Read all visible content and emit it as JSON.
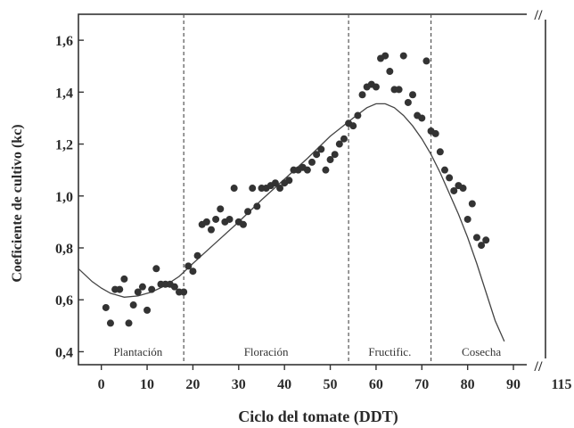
{
  "chart_data": {
    "type": "scatter",
    "title": "",
    "xlabel": "Ciclo del tomate (DDT)",
    "ylabel": "Coeficiente de cultivo (kc)",
    "xlim": [
      -5,
      97
    ],
    "ylim": [
      0.35,
      1.7
    ],
    "x_ticks": [
      "0",
      "10",
      "20",
      "30",
      "40",
      "50",
      "60",
      "70",
      "80",
      "90",
      "115"
    ],
    "y_ticks": [
      "0,4",
      "0,6",
      "0,8",
      "1,0",
      "1,2",
      "1,4",
      "1,6"
    ],
    "axis_break": "//",
    "grid": false,
    "legend": "none",
    "colors": {
      "points": "#333333",
      "curve": "#444444",
      "stage_lines": "#555555"
    },
    "stage_boundaries": [
      18,
      54,
      72
    ],
    "stages": [
      {
        "name": "Plantación",
        "x": 8
      },
      {
        "name": "Floración",
        "x": 36
      },
      {
        "name": "Fructific.",
        "x": 63
      },
      {
        "name": "Cosecha",
        "x": 83
      }
    ],
    "series": [
      {
        "type": "scatter",
        "points": [
          [
            1,
            0.57
          ],
          [
            2,
            0.51
          ],
          [
            3,
            0.64
          ],
          [
            4,
            0.64
          ],
          [
            5,
            0.68
          ],
          [
            6,
            0.51
          ],
          [
            7,
            0.58
          ],
          [
            8,
            0.63
          ],
          [
            9,
            0.65
          ],
          [
            10,
            0.56
          ],
          [
            11,
            0.64
          ],
          [
            12,
            0.72
          ],
          [
            13,
            0.66
          ],
          [
            14,
            0.66
          ],
          [
            15,
            0.66
          ],
          [
            16,
            0.65
          ],
          [
            17,
            0.63
          ],
          [
            18,
            0.63
          ],
          [
            19,
            0.73
          ],
          [
            20,
            0.71
          ],
          [
            21,
            0.77
          ],
          [
            22,
            0.89
          ],
          [
            23,
            0.9
          ],
          [
            24,
            0.87
          ],
          [
            25,
            0.91
          ],
          [
            26,
            0.95
          ],
          [
            27,
            0.9
          ],
          [
            28,
            0.91
          ],
          [
            29,
            1.03
          ],
          [
            30,
            0.9
          ],
          [
            31,
            0.89
          ],
          [
            32,
            0.94
          ],
          [
            33,
            1.03
          ],
          [
            34,
            0.96
          ],
          [
            35,
            1.03
          ],
          [
            36,
            1.03
          ],
          [
            37,
            1.04
          ],
          [
            38,
            1.05
          ],
          [
            39,
            1.03
          ],
          [
            40,
            1.05
          ],
          [
            41,
            1.06
          ],
          [
            42,
            1.1
          ],
          [
            43,
            1.1
          ],
          [
            44,
            1.11
          ],
          [
            45,
            1.1
          ],
          [
            46,
            1.13
          ],
          [
            47,
            1.16
          ],
          [
            48,
            1.18
          ],
          [
            49,
            1.1
          ],
          [
            50,
            1.14
          ],
          [
            51,
            1.16
          ],
          [
            52,
            1.2
          ],
          [
            53,
            1.22
          ],
          [
            54,
            1.28
          ],
          [
            55,
            1.27
          ],
          [
            56,
            1.31
          ],
          [
            57,
            1.39
          ],
          [
            58,
            1.42
          ],
          [
            59,
            1.43
          ],
          [
            60,
            1.42
          ],
          [
            61,
            1.53
          ],
          [
            62,
            1.54
          ],
          [
            63,
            1.48
          ],
          [
            64,
            1.41
          ],
          [
            65,
            1.41
          ],
          [
            66,
            1.54
          ],
          [
            67,
            1.36
          ],
          [
            68,
            1.39
          ],
          [
            69,
            1.31
          ],
          [
            70,
            1.3
          ],
          [
            71,
            1.52
          ],
          [
            72,
            1.25
          ],
          [
            73,
            1.24
          ],
          [
            74,
            1.17
          ],
          [
            75,
            1.1
          ],
          [
            76,
            1.07
          ],
          [
            77,
            1.02
          ],
          [
            78,
            1.04
          ],
          [
            79,
            1.03
          ],
          [
            80,
            0.91
          ],
          [
            81,
            0.97
          ],
          [
            82,
            0.84
          ],
          [
            83,
            0.81
          ],
          [
            84,
            0.83
          ]
        ]
      },
      {
        "type": "line",
        "points": [
          [
            -5,
            0.72
          ],
          [
            -2,
            0.67
          ],
          [
            0,
            0.645
          ],
          [
            2,
            0.625
          ],
          [
            5,
            0.61
          ],
          [
            8,
            0.615
          ],
          [
            11,
            0.63
          ],
          [
            14,
            0.655
          ],
          [
            17,
            0.69
          ],
          [
            20,
            0.74
          ],
          [
            25,
            0.82
          ],
          [
            30,
            0.9
          ],
          [
            35,
            0.985
          ],
          [
            40,
            1.065
          ],
          [
            45,
            1.145
          ],
          [
            50,
            1.23
          ],
          [
            55,
            1.3
          ],
          [
            58,
            1.34
          ],
          [
            60,
            1.355
          ],
          [
            62,
            1.355
          ],
          [
            64,
            1.34
          ],
          [
            66,
            1.31
          ],
          [
            68,
            1.27
          ],
          [
            70,
            1.22
          ],
          [
            72,
            1.16
          ],
          [
            74,
            1.09
          ],
          [
            76,
            1.01
          ],
          [
            78,
            0.93
          ],
          [
            80,
            0.84
          ],
          [
            82,
            0.74
          ],
          [
            84,
            0.63
          ],
          [
            86,
            0.52
          ],
          [
            88,
            0.44
          ]
        ]
      }
    ]
  }
}
